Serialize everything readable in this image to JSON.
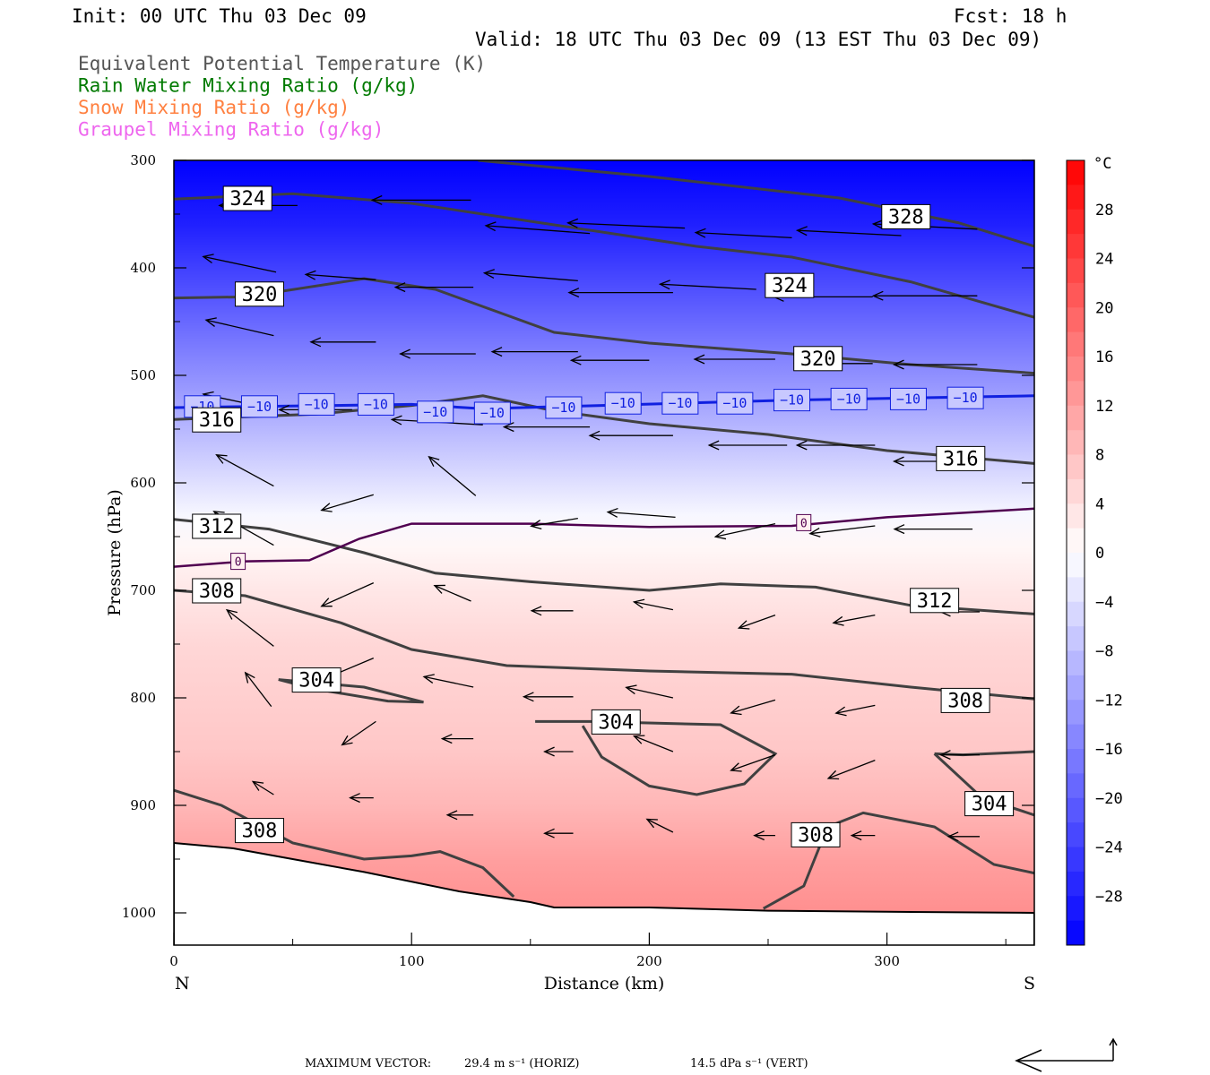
{
  "header": {
    "init": "Init: 00 UTC Thu 03 Dec 09",
    "fcst": "Fcst:   18 h",
    "valid": "Valid: 18 UTC Thu 03 Dec 09 (13 EST Thu 03 Dec 09)"
  },
  "legend": [
    {
      "text": "Equivalent Potential Temperature (K)",
      "color": "#555555"
    },
    {
      "text": "Rain Water Mixing Ratio (g/kg)",
      "color": "#007a00"
    },
    {
      "text": "Snow Mixing Ratio (g/kg)",
      "color": "#ff8040"
    },
    {
      "text": "Graupel Mixing Ratio (g/kg)",
      "color": "#ee66ee"
    }
  ],
  "footer": {
    "max_vector_label": "MAXIMUM VECTOR:",
    "horiz": "29.4 m s⁻¹ (HORIZ)",
    "vert": "14.5 dPa s⁻¹ (VERT)"
  },
  "chart_data": {
    "type": "heatmap",
    "xlabel": "Distance (km)",
    "ylabel": "Pressure (hPa)",
    "xlim": [
      0,
      362
    ],
    "ylim": [
      1030,
      300
    ],
    "x_ticks": [
      0,
      100,
      200,
      300
    ],
    "y_ticks": [
      300,
      400,
      500,
      600,
      700,
      800,
      900,
      1000
    ],
    "x_end_labels": {
      "left": "N",
      "right": "S"
    },
    "colorbar": {
      "unit": "°C",
      "ticks": [
        28,
        24,
        20,
        16,
        12,
        8,
        4,
        0,
        -4,
        -8,
        -12,
        -16,
        -20,
        -24,
        -28
      ],
      "range": [
        -32,
        32
      ]
    },
    "temperature_profile": [
      {
        "p": 300,
        "t": -32
      },
      {
        "p": 360,
        "t": -28
      },
      {
        "p": 400,
        "t": -24
      },
      {
        "p": 440,
        "t": -20
      },
      {
        "p": 480,
        "t": -16
      },
      {
        "p": 510,
        "t": -13
      },
      {
        "p": 540,
        "t": -10
      },
      {
        "p": 570,
        "t": -7
      },
      {
        "p": 600,
        "t": -4
      },
      {
        "p": 630,
        "t": -1
      },
      {
        "p": 660,
        "t": 1
      },
      {
        "p": 700,
        "t": 3
      },
      {
        "p": 750,
        "t": 5
      },
      {
        "p": 800,
        "t": 6
      },
      {
        "p": 850,
        "t": 7
      },
      {
        "p": 900,
        "t": 9
      },
      {
        "p": 950,
        "t": 12
      },
      {
        "p": 1000,
        "t": 14
      }
    ],
    "isotherm_labels": [
      {
        "x": 12,
        "p": 529,
        "text": "−10"
      },
      {
        "x": 36,
        "p": 529,
        "text": "−10"
      },
      {
        "x": 60,
        "p": 527,
        "text": "−10"
      },
      {
        "x": 85,
        "p": 527,
        "text": "−10"
      },
      {
        "x": 110,
        "p": 534,
        "text": "−10"
      },
      {
        "x": 134,
        "p": 535,
        "text": "−10"
      },
      {
        "x": 164,
        "p": 530,
        "text": "−10"
      },
      {
        "x": 189,
        "p": 526,
        "text": "−10"
      },
      {
        "x": 213,
        "p": 526,
        "text": "−10"
      },
      {
        "x": 236,
        "p": 526,
        "text": "−10"
      },
      {
        "x": 260,
        "p": 523,
        "text": "−10"
      },
      {
        "x": 284,
        "p": 522,
        "text": "−10"
      },
      {
        "x": 309,
        "p": 522,
        "text": "−10"
      },
      {
        "x": 333,
        "p": 521,
        "text": "−10"
      },
      {
        "x": 27,
        "p": 673,
        "text": "0"
      },
      {
        "x": 265,
        "p": 637,
        "text": "0"
      }
    ],
    "theta_e_labels": [
      {
        "x": 31,
        "p": 335,
        "text": "324"
      },
      {
        "x": 308,
        "p": 352,
        "text": "328"
      },
      {
        "x": 36,
        "p": 424,
        "text": "320"
      },
      {
        "x": 259,
        "p": 416,
        "text": "324"
      },
      {
        "x": 271,
        "p": 484,
        "text": "320"
      },
      {
        "x": 18,
        "p": 541,
        "text": "316"
      },
      {
        "x": 331,
        "p": 577,
        "text": "316"
      },
      {
        "x": 18,
        "p": 640,
        "text": "312"
      },
      {
        "x": 320,
        "p": 709,
        "text": "312"
      },
      {
        "x": 18,
        "p": 700,
        "text": "308"
      },
      {
        "x": 60,
        "p": 783,
        "text": "304"
      },
      {
        "x": 186,
        "p": 822,
        "text": "304"
      },
      {
        "x": 333,
        "p": 802,
        "text": "308"
      },
      {
        "x": 343,
        "p": 898,
        "text": "304"
      },
      {
        "x": 36,
        "p": 923,
        "text": "308"
      },
      {
        "x": 270,
        "p": 927,
        "text": "308"
      }
    ],
    "freezing_level": [
      {
        "x": 0,
        "p": 678
      },
      {
        "x": 30,
        "p": 673
      },
      {
        "x": 57,
        "p": 672
      },
      {
        "x": 78,
        "p": 652
      },
      {
        "x": 100,
        "p": 638
      },
      {
        "x": 150,
        "p": 638
      },
      {
        "x": 200,
        "p": 641
      },
      {
        "x": 260,
        "p": 640
      },
      {
        "x": 300,
        "p": 632
      },
      {
        "x": 362,
        "p": 624
      }
    ],
    "minus10_level": [
      {
        "x": 0,
        "p": 530
      },
      {
        "x": 100,
        "p": 527
      },
      {
        "x": 130,
        "p": 531
      },
      {
        "x": 180,
        "p": 528
      },
      {
        "x": 260,
        "p": 523
      },
      {
        "x": 362,
        "p": 519
      }
    ],
    "theta_e_contours": [
      [
        {
          "x": 0,
          "p": 336
        },
        {
          "x": 50,
          "p": 331
        },
        {
          "x": 100,
          "p": 340
        },
        {
          "x": 160,
          "p": 360
        },
        {
          "x": 220,
          "p": 380
        },
        {
          "x": 260,
          "p": 390
        },
        {
          "x": 310,
          "p": 413
        },
        {
          "x": 362,
          "p": 446
        }
      ],
      [
        {
          "x": 128,
          "p": 300
        },
        {
          "x": 200,
          "p": 315
        },
        {
          "x": 280,
          "p": 335
        },
        {
          "x": 330,
          "p": 358
        },
        {
          "x": 362,
          "p": 380
        }
      ],
      [
        {
          "x": 0,
          "p": 428
        },
        {
          "x": 30,
          "p": 427
        },
        {
          "x": 80,
          "p": 410
        },
        {
          "x": 110,
          "p": 420
        },
        {
          "x": 160,
          "p": 460
        },
        {
          "x": 200,
          "p": 470
        },
        {
          "x": 260,
          "p": 480
        },
        {
          "x": 310,
          "p": 490
        },
        {
          "x": 362,
          "p": 498
        }
      ],
      [
        {
          "x": 0,
          "p": 541
        },
        {
          "x": 60,
          "p": 536
        },
        {
          "x": 100,
          "p": 528
        },
        {
          "x": 130,
          "p": 519
        },
        {
          "x": 160,
          "p": 533
        },
        {
          "x": 200,
          "p": 545
        },
        {
          "x": 250,
          "p": 555
        },
        {
          "x": 300,
          "p": 570
        },
        {
          "x": 362,
          "p": 582
        }
      ],
      [
        {
          "x": 0,
          "p": 634
        },
        {
          "x": 40,
          "p": 643
        },
        {
          "x": 80,
          "p": 665
        },
        {
          "x": 110,
          "p": 684
        },
        {
          "x": 150,
          "p": 692
        },
        {
          "x": 200,
          "p": 700
        },
        {
          "x": 230,
          "p": 694
        },
        {
          "x": 270,
          "p": 697
        },
        {
          "x": 310,
          "p": 714
        },
        {
          "x": 362,
          "p": 722
        }
      ],
      [
        {
          "x": 0,
          "p": 700
        },
        {
          "x": 30,
          "p": 705
        },
        {
          "x": 70,
          "p": 730
        },
        {
          "x": 100,
          "p": 755
        },
        {
          "x": 140,
          "p": 770
        },
        {
          "x": 200,
          "p": 775
        },
        {
          "x": 260,
          "p": 778
        },
        {
          "x": 310,
          "p": 790
        },
        {
          "x": 362,
          "p": 801
        }
      ],
      [
        {
          "x": 44,
          "p": 783
        },
        {
          "x": 80,
          "p": 790
        },
        {
          "x": 105,
          "p": 804
        },
        {
          "x": 90,
          "p": 803
        },
        {
          "x": 60,
          "p": 792
        },
        {
          "x": 44,
          "p": 783
        }
      ],
      [
        {
          "x": 152,
          "p": 822
        },
        {
          "x": 175,
          "p": 822
        },
        {
          "x": 230,
          "p": 825
        },
        {
          "x": 253,
          "p": 852
        },
        {
          "x": 240,
          "p": 880
        },
        {
          "x": 220,
          "p": 890
        },
        {
          "x": 200,
          "p": 882
        },
        {
          "x": 180,
          "p": 855
        },
        {
          "x": 172,
          "p": 826
        }
      ],
      [
        {
          "x": 320,
          "p": 852
        },
        {
          "x": 332,
          "p": 853
        },
        {
          "x": 362,
          "p": 850
        }
      ],
      [
        {
          "x": 320,
          "p": 852
        },
        {
          "x": 340,
          "p": 893
        },
        {
          "x": 362,
          "p": 909
        }
      ],
      [
        {
          "x": 0,
          "p": 886
        },
        {
          "x": 20,
          "p": 900
        },
        {
          "x": 50,
          "p": 935
        },
        {
          "x": 80,
          "p": 950
        },
        {
          "x": 100,
          "p": 947
        },
        {
          "x": 112,
          "p": 943
        },
        {
          "x": 130,
          "p": 958
        },
        {
          "x": 143,
          "p": 985
        }
      ],
      [
        {
          "x": 248,
          "p": 996
        },
        {
          "x": 265,
          "p": 975
        },
        {
          "x": 275,
          "p": 920
        },
        {
          "x": 290,
          "p": 907
        },
        {
          "x": 320,
          "p": 920
        },
        {
          "x": 345,
          "p": 955
        },
        {
          "x": 362,
          "p": 963
        }
      ]
    ],
    "terrain": [
      {
        "x": 0,
        "p": 935
      },
      {
        "x": 25,
        "p": 940
      },
      {
        "x": 50,
        "p": 950
      },
      {
        "x": 80,
        "p": 962
      },
      {
        "x": 120,
        "p": 980
      },
      {
        "x": 150,
        "p": 990
      },
      {
        "x": 160,
        "p": 995
      },
      {
        "x": 200,
        "p": 995
      },
      {
        "x": 250,
        "p": 998
      },
      {
        "x": 300,
        "p": 999
      },
      {
        "x": 362,
        "p": 1000
      }
    ],
    "wind_vectors": [
      {
        "x": 52,
        "p": 342,
        "u": -30,
        "v": 0
      },
      {
        "x": 125,
        "p": 337,
        "u": -38,
        "v": 0
      },
      {
        "x": 175,
        "p": 368,
        "u": -40,
        "v": -3
      },
      {
        "x": 215,
        "p": 363,
        "u": -45,
        "v": -2
      },
      {
        "x": 260,
        "p": 372,
        "u": -37,
        "v": -2
      },
      {
        "x": 306,
        "p": 370,
        "u": -40,
        "v": -2
      },
      {
        "x": 338,
        "p": 364,
        "u": -40,
        "v": -2
      },
      {
        "x": 43,
        "p": 404,
        "u": -28,
        "v": -6
      },
      {
        "x": 85,
        "p": 411,
        "u": -27,
        "v": -2
      },
      {
        "x": 126,
        "p": 418,
        "u": -30,
        "v": 0
      },
      {
        "x": 170,
        "p": 412,
        "u": -36,
        "v": -3
      },
      {
        "x": 210,
        "p": 423,
        "u": -40,
        "v": 0
      },
      {
        "x": 245,
        "p": 420,
        "u": -37,
        "v": -2
      },
      {
        "x": 294,
        "p": 427,
        "u": -38,
        "v": 0
      },
      {
        "x": 338,
        "p": 426,
        "u": -40,
        "v": 0
      },
      {
        "x": 42,
        "p": 463,
        "u": -26,
        "v": -6
      },
      {
        "x": 85,
        "p": 469,
        "u": -25,
        "v": 0
      },
      {
        "x": 127,
        "p": 480,
        "u": -29,
        "v": 0
      },
      {
        "x": 170,
        "p": 478,
        "u": -33,
        "v": 0
      },
      {
        "x": 200,
        "p": 486,
        "u": -30,
        "v": 0
      },
      {
        "x": 253,
        "p": 485,
        "u": -31,
        "v": 0
      },
      {
        "x": 294,
        "p": 489,
        "u": -30,
        "v": 0
      },
      {
        "x": 338,
        "p": 490,
        "u": -32,
        "v": 0
      },
      {
        "x": 43,
        "p": 532,
        "u": -28,
        "v": -6
      },
      {
        "x": 75,
        "p": 532,
        "u": -28,
        "v": 0
      },
      {
        "x": 130,
        "p": 546,
        "u": -35,
        "v": -2
      },
      {
        "x": 175,
        "p": 548,
        "u": -33,
        "v": 0
      },
      {
        "x": 210,
        "p": 556,
        "u": -32,
        "v": 0
      },
      {
        "x": 258,
        "p": 565,
        "u": -30,
        "v": 0
      },
      {
        "x": 295,
        "p": 565,
        "u": -30,
        "v": 0
      },
      {
        "x": 338,
        "p": 580,
        "u": -32,
        "v": 0
      },
      {
        "x": 42,
        "p": 603,
        "u": -22,
        "v": -12
      },
      {
        "x": 84,
        "p": 611,
        "u": -20,
        "v": 6
      },
      {
        "x": 127,
        "p": 612,
        "u": -18,
        "v": -15
      },
      {
        "x": 170,
        "p": 633,
        "u": -18,
        "v": 3
      },
      {
        "x": 211,
        "p": 632,
        "u": -26,
        "v": -2
      },
      {
        "x": 253,
        "p": 638,
        "u": -23,
        "v": 5
      },
      {
        "x": 295,
        "p": 640,
        "u": -25,
        "v": 3
      },
      {
        "x": 336,
        "p": 643,
        "u": -30,
        "v": 0
      },
      {
        "x": 42,
        "p": 658,
        "u": -23,
        "v": -13
      },
      {
        "x": 84,
        "p": 693,
        "u": -20,
        "v": 9
      },
      {
        "x": 125,
        "p": 710,
        "u": -14,
        "v": -6
      },
      {
        "x": 168,
        "p": 719,
        "u": -16,
        "v": 0
      },
      {
        "x": 210,
        "p": 718,
        "u": -15,
        "v": -3
      },
      {
        "x": 253,
        "p": 723,
        "u": -14,
        "v": 5
      },
      {
        "x": 295,
        "p": 723,
        "u": -16,
        "v": 3
      },
      {
        "x": 339,
        "p": 720,
        "u": -15,
        "v": 0
      },
      {
        "x": 42,
        "p": 752,
        "u": -18,
        "v": -14
      },
      {
        "x": 84,
        "p": 763,
        "u": -19,
        "v": 8
      },
      {
        "x": 126,
        "p": 790,
        "u": -19,
        "v": -4
      },
      {
        "x": 168,
        "p": 799,
        "u": -19,
        "v": 0
      },
      {
        "x": 210,
        "p": 800,
        "u": -18,
        "v": -4
      },
      {
        "x": 253,
        "p": 802,
        "u": -17,
        "v": 5
      },
      {
        "x": 295,
        "p": 807,
        "u": -15,
        "v": 3
      },
      {
        "x": 41,
        "p": 808,
        "u": -10,
        "v": -13
      },
      {
        "x": 85,
        "p": 822,
        "u": -13,
        "v": 9
      },
      {
        "x": 126,
        "p": 838,
        "u": -12,
        "v": 0
      },
      {
        "x": 168,
        "p": 850,
        "u": -11,
        "v": 0
      },
      {
        "x": 210,
        "p": 850,
        "u": -15,
        "v": -6
      },
      {
        "x": 253,
        "p": 853,
        "u": -17,
        "v": 6
      },
      {
        "x": 295,
        "p": 858,
        "u": -18,
        "v": 7
      },
      {
        "x": 339,
        "p": 853,
        "u": -15,
        "v": 0
      },
      {
        "x": 42,
        "p": 890,
        "u": -8,
        "v": -5
      },
      {
        "x": 84,
        "p": 893,
        "u": -9,
        "v": 0
      },
      {
        "x": 126,
        "p": 909,
        "u": -10,
        "v": 0
      },
      {
        "x": 168,
        "p": 926,
        "u": -11,
        "v": 0
      },
      {
        "x": 210,
        "p": 925,
        "u": -10,
        "v": -5
      },
      {
        "x": 253,
        "p": 928,
        "u": -8,
        "v": 0
      },
      {
        "x": 295,
        "p": 928,
        "u": -9,
        "v": 0
      },
      {
        "x": 339,
        "p": 929,
        "u": -12,
        "v": 0
      }
    ]
  }
}
